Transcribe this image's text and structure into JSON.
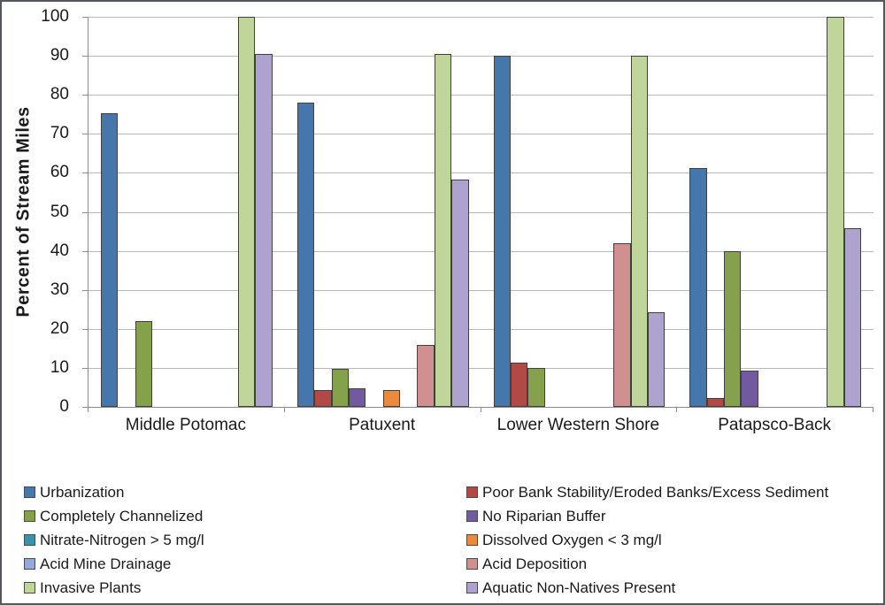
{
  "chart_data": {
    "type": "bar",
    "title": "",
    "ylabel": "Percent of Stream Miles",
    "xlabel": "",
    "ylim": [
      0,
      100
    ],
    "ytick_step": 10,
    "grid": true,
    "legend_position": "bottom-two-columns",
    "categories": [
      "Middle Potomac",
      "Patuxent",
      "Lower Western Shore",
      "Patapsco-Back"
    ],
    "series": [
      {
        "name": "Urbanization",
        "color": "#4576AC",
        "values": [
          75.3,
          78.0,
          90.0,
          61.3
        ]
      },
      {
        "name": "Poor Bank Stability/Eroded Banks/Excess Sediment",
        "color": "#B14A45",
        "values": [
          0,
          4.3,
          11.3,
          2.3
        ]
      },
      {
        "name": "Completely Channelized",
        "color": "#86A14B",
        "values": [
          22.0,
          9.8,
          10.0,
          39.8
        ]
      },
      {
        "name": "No Riparian Buffer",
        "color": "#715AA0",
        "values": [
          0,
          4.7,
          0,
          9.3
        ]
      },
      {
        "name": "Nitrate-Nitrogen > 5 mg/l",
        "color": "#3B92A8",
        "values": [
          0,
          0,
          0,
          0
        ]
      },
      {
        "name": "Dissolved Oxygen < 3 mg/l",
        "color": "#E98A3C",
        "values": [
          0,
          4.2,
          0,
          0
        ]
      },
      {
        "name": "Acid Mine Drainage",
        "color": "#93A9D6",
        "values": [
          0,
          0,
          0,
          0
        ]
      },
      {
        "name": "Acid Deposition",
        "color": "#D0908F",
        "values": [
          0,
          15.8,
          42.0,
          0
        ]
      },
      {
        "name": "Invasive Plants",
        "color": "#BFD59A",
        "values": [
          100.0,
          90.5,
          90.0,
          100.0
        ]
      },
      {
        "name": "Aquatic Non-Natives Present",
        "color": "#AEA3CE",
        "values": [
          90.5,
          58.3,
          24.3,
          45.7
        ]
      }
    ]
  }
}
